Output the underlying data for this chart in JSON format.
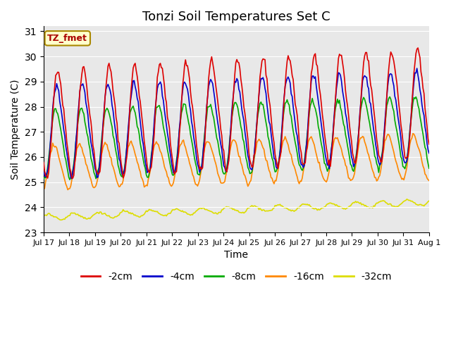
{
  "title": "Tonzi Soil Temperatures Set C",
  "xlabel": "Time",
  "ylabel": "Soil Temperature (C)",
  "annotation": "TZ_fmet",
  "ylim": [
    23.0,
    31.2
  ],
  "yticks": [
    23.0,
    24.0,
    25.0,
    26.0,
    27.0,
    28.0,
    29.0,
    30.0,
    31.0
  ],
  "xtick_labels": [
    "Jul 17",
    "Jul 18",
    "Jul 19",
    "Jul 20",
    "Jul 21",
    "Jul 22",
    "Jul 23",
    "Jul 24",
    "Jul 25",
    "Jul 26",
    "Jul 27",
    "Jul 28",
    "Jul 29",
    "Jul 30",
    "Jul 31",
    "Aug 1"
  ],
  "legend_labels": [
    "-2cm",
    "-4cm",
    "-8cm",
    "-16cm",
    "-32cm"
  ],
  "line_colors": [
    "#dd0000",
    "#0000cc",
    "#00aa00",
    "#ff8800",
    "#dddd00"
  ],
  "n_points": 384,
  "days": 15,
  "background_color": "#e8e8e8",
  "title_fontsize": 13,
  "axis_fontsize": 10,
  "legend_fontsize": 10
}
